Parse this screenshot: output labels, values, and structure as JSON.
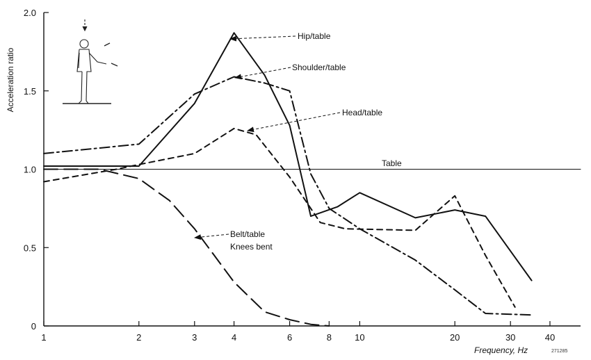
{
  "chart_data": {
    "type": "line",
    "xlabel": "Frequency, Hz",
    "ylabel": "Acceleration ratio",
    "x_scale": "log",
    "xlim": [
      1,
      50
    ],
    "ylim": [
      0,
      2.0
    ],
    "x_ticks": [
      1,
      2,
      3,
      4,
      6,
      8,
      10,
      20,
      30,
      40
    ],
    "x_tick_labels": [
      "1",
      "2",
      "3",
      "4",
      "6",
      "8",
      "10",
      "20",
      "30",
      "40"
    ],
    "y_ticks": [
      0,
      0.5,
      1.0,
      1.5,
      2.0
    ],
    "y_tick_labels": [
      "0",
      "0.5",
      "1.0",
      "1.5",
      "2.0"
    ],
    "grid": false,
    "legend": "none",
    "figure_code": "271285",
    "series": [
      {
        "name": "Hip/table",
        "style": "solid",
        "x": [
          1,
          2,
          3,
          4,
          5,
          6,
          7,
          8.5,
          10,
          15,
          20,
          25,
          35
        ],
        "y": [
          1.02,
          1.02,
          1.42,
          1.87,
          1.6,
          1.28,
          0.7,
          0.76,
          0.85,
          0.69,
          0.74,
          0.7,
          0.29
        ]
      },
      {
        "name": "Shoulder/table",
        "style": "dash-dot",
        "x": [
          1,
          2,
          3,
          4,
          5,
          6,
          7,
          8,
          10,
          15,
          20,
          25,
          35
        ],
        "y": [
          1.1,
          1.16,
          1.48,
          1.59,
          1.55,
          1.5,
          0.97,
          0.75,
          0.62,
          0.42,
          0.23,
          0.08,
          0.07
        ]
      },
      {
        "name": "Head/table",
        "style": "dashed",
        "x": [
          1,
          1.7,
          2,
          3,
          4,
          4.7,
          6,
          7.5,
          9,
          15,
          20,
          25,
          31
        ],
        "y": [
          0.92,
          1.0,
          1.03,
          1.1,
          1.26,
          1.22,
          0.95,
          0.66,
          0.62,
          0.61,
          0.83,
          0.45,
          0.12
        ]
      },
      {
        "name": "Belt/table Knees bent",
        "style": "long-dash",
        "x": [
          1,
          1.5,
          2,
          2.5,
          3,
          4,
          5,
          6,
          7,
          8
        ],
        "y": [
          1.0,
          1.0,
          0.94,
          0.8,
          0.62,
          0.28,
          0.09,
          0.04,
          0.01,
          0.0
        ]
      },
      {
        "name": "Table",
        "style": "thin-solid",
        "x": [
          1,
          50
        ],
        "y": [
          1.0,
          1.0
        ]
      }
    ],
    "annotations": [
      {
        "label": "Hip/table",
        "points_to_series": "Hip/table",
        "target_x": 4.15,
        "target_y": 1.84
      },
      {
        "label": "Shoulder/table",
        "points_to_series": "Shoulder/table",
        "target_x": 4.3,
        "target_y": 1.58
      },
      {
        "label": "Head/table",
        "points_to_series": "Head/table",
        "target_x": 4.9,
        "target_y": 1.22
      },
      {
        "label": "Table",
        "points_to_series": "Table"
      },
      {
        "label": "Belt/table",
        "points_to_series": "Belt/table Knees bent",
        "target_x": 3.3,
        "target_y": 0.53
      },
      {
        "label": "Knees bent",
        "points_to_series": "Belt/table Knees bent"
      }
    ],
    "inset": "standing-person-figure"
  }
}
